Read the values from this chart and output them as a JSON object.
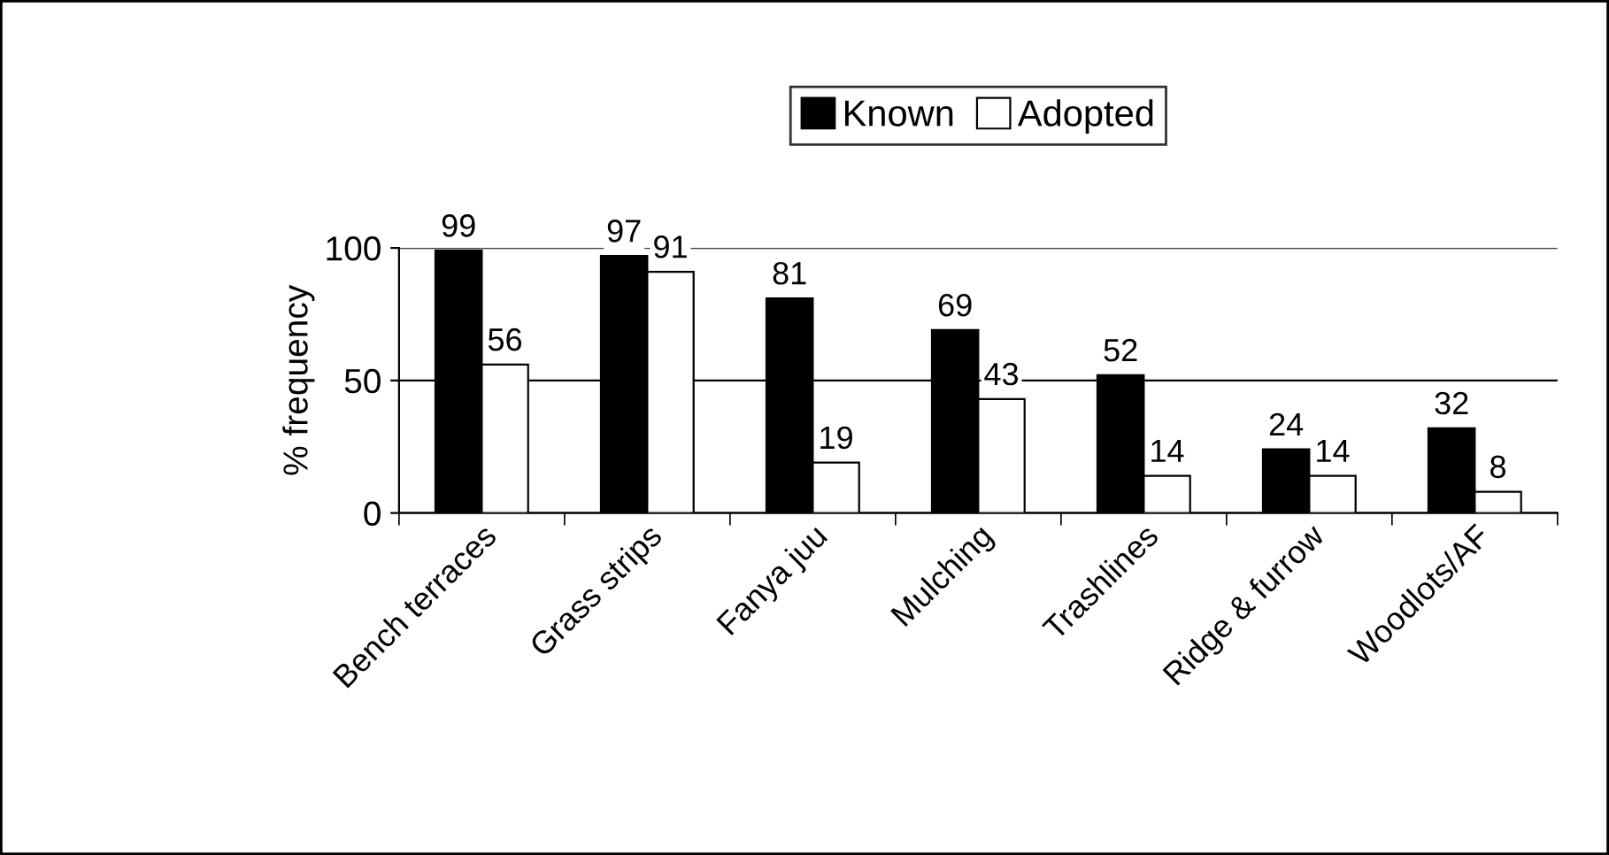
{
  "chart_data": {
    "type": "bar",
    "ylabel": "% frequency",
    "categories": [
      "Bench terraces",
      "Grass strips",
      "Fanya juu",
      "Mulching",
      "Trashlines",
      "Ridge & furrow",
      "Woodlots/AF"
    ],
    "series": [
      {
        "name": "Known",
        "color": "#000000",
        "values": [
          99,
          97,
          81,
          69,
          52,
          24,
          32
        ]
      },
      {
        "name": "Adopted",
        "color": "#ffffff",
        "values": [
          56,
          91,
          19,
          43,
          14,
          14,
          8
        ]
      }
    ],
    "ylim": [
      0,
      100
    ],
    "yticks": [
      0,
      50,
      100
    ],
    "grid": "y",
    "legend": "top",
    "data_labels": true
  }
}
